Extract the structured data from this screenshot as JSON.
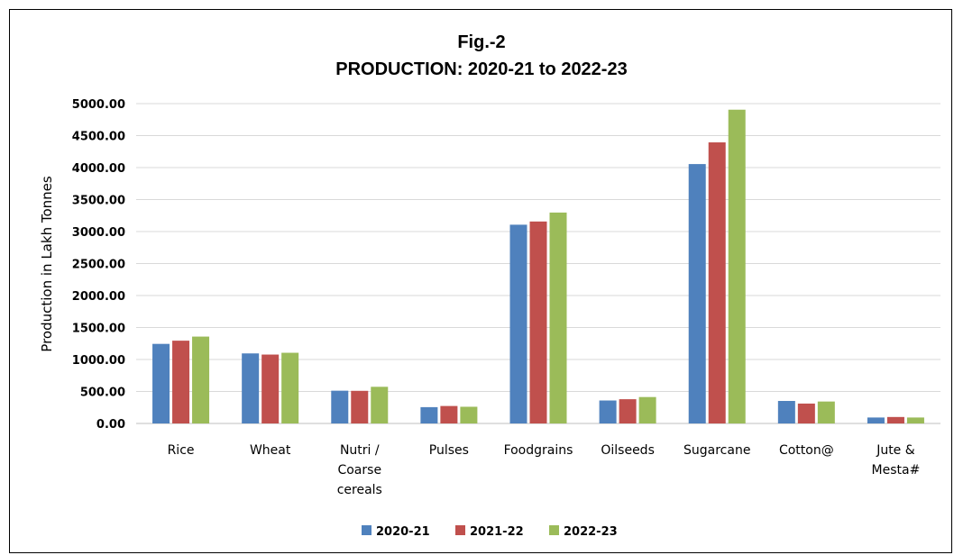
{
  "chart_data": {
    "type": "bar",
    "title": "Fig.-2",
    "subtitle": "PRODUCTION: 2020-21 to 2022-23",
    "xlabel": "",
    "ylabel": "Production in Lakh Tonnes",
    "ylim": [
      0,
      5000
    ],
    "ytick_labels": [
      "0.00",
      "500.00",
      "1000.00",
      "1500.00",
      "2000.00",
      "2500.00",
      "3000.00",
      "3500.00",
      "4000.00",
      "4500.00",
      "5000.00"
    ],
    "categories": [
      [
        "Rice"
      ],
      [
        "Wheat"
      ],
      [
        "Nutri /",
        "Coarse",
        "cereals"
      ],
      [
        "Pulses"
      ],
      [
        "Foodgrains"
      ],
      [
        "Oilseeds"
      ],
      [
        "Sugarcane"
      ],
      [
        "Cotton@"
      ],
      [
        "Jute &",
        "Mesta#"
      ]
    ],
    "series": [
      {
        "name": "2020-21",
        "color": "#4f81bd",
        "values": [
          1244,
          1095,
          512,
          255,
          3107,
          359,
          4055,
          352,
          93
        ]
      },
      {
        "name": "2021-22",
        "color": "#c0504d",
        "values": [
          1294,
          1077,
          510,
          273,
          3157,
          379,
          4394,
          311,
          101
        ]
      },
      {
        "name": "2022-23",
        "color": "#9bbb59",
        "values": [
          1358,
          1105,
          573,
          261,
          3297,
          413,
          4905,
          343,
          93
        ]
      }
    ],
    "grid": true,
    "legend_position": "bottom"
  }
}
